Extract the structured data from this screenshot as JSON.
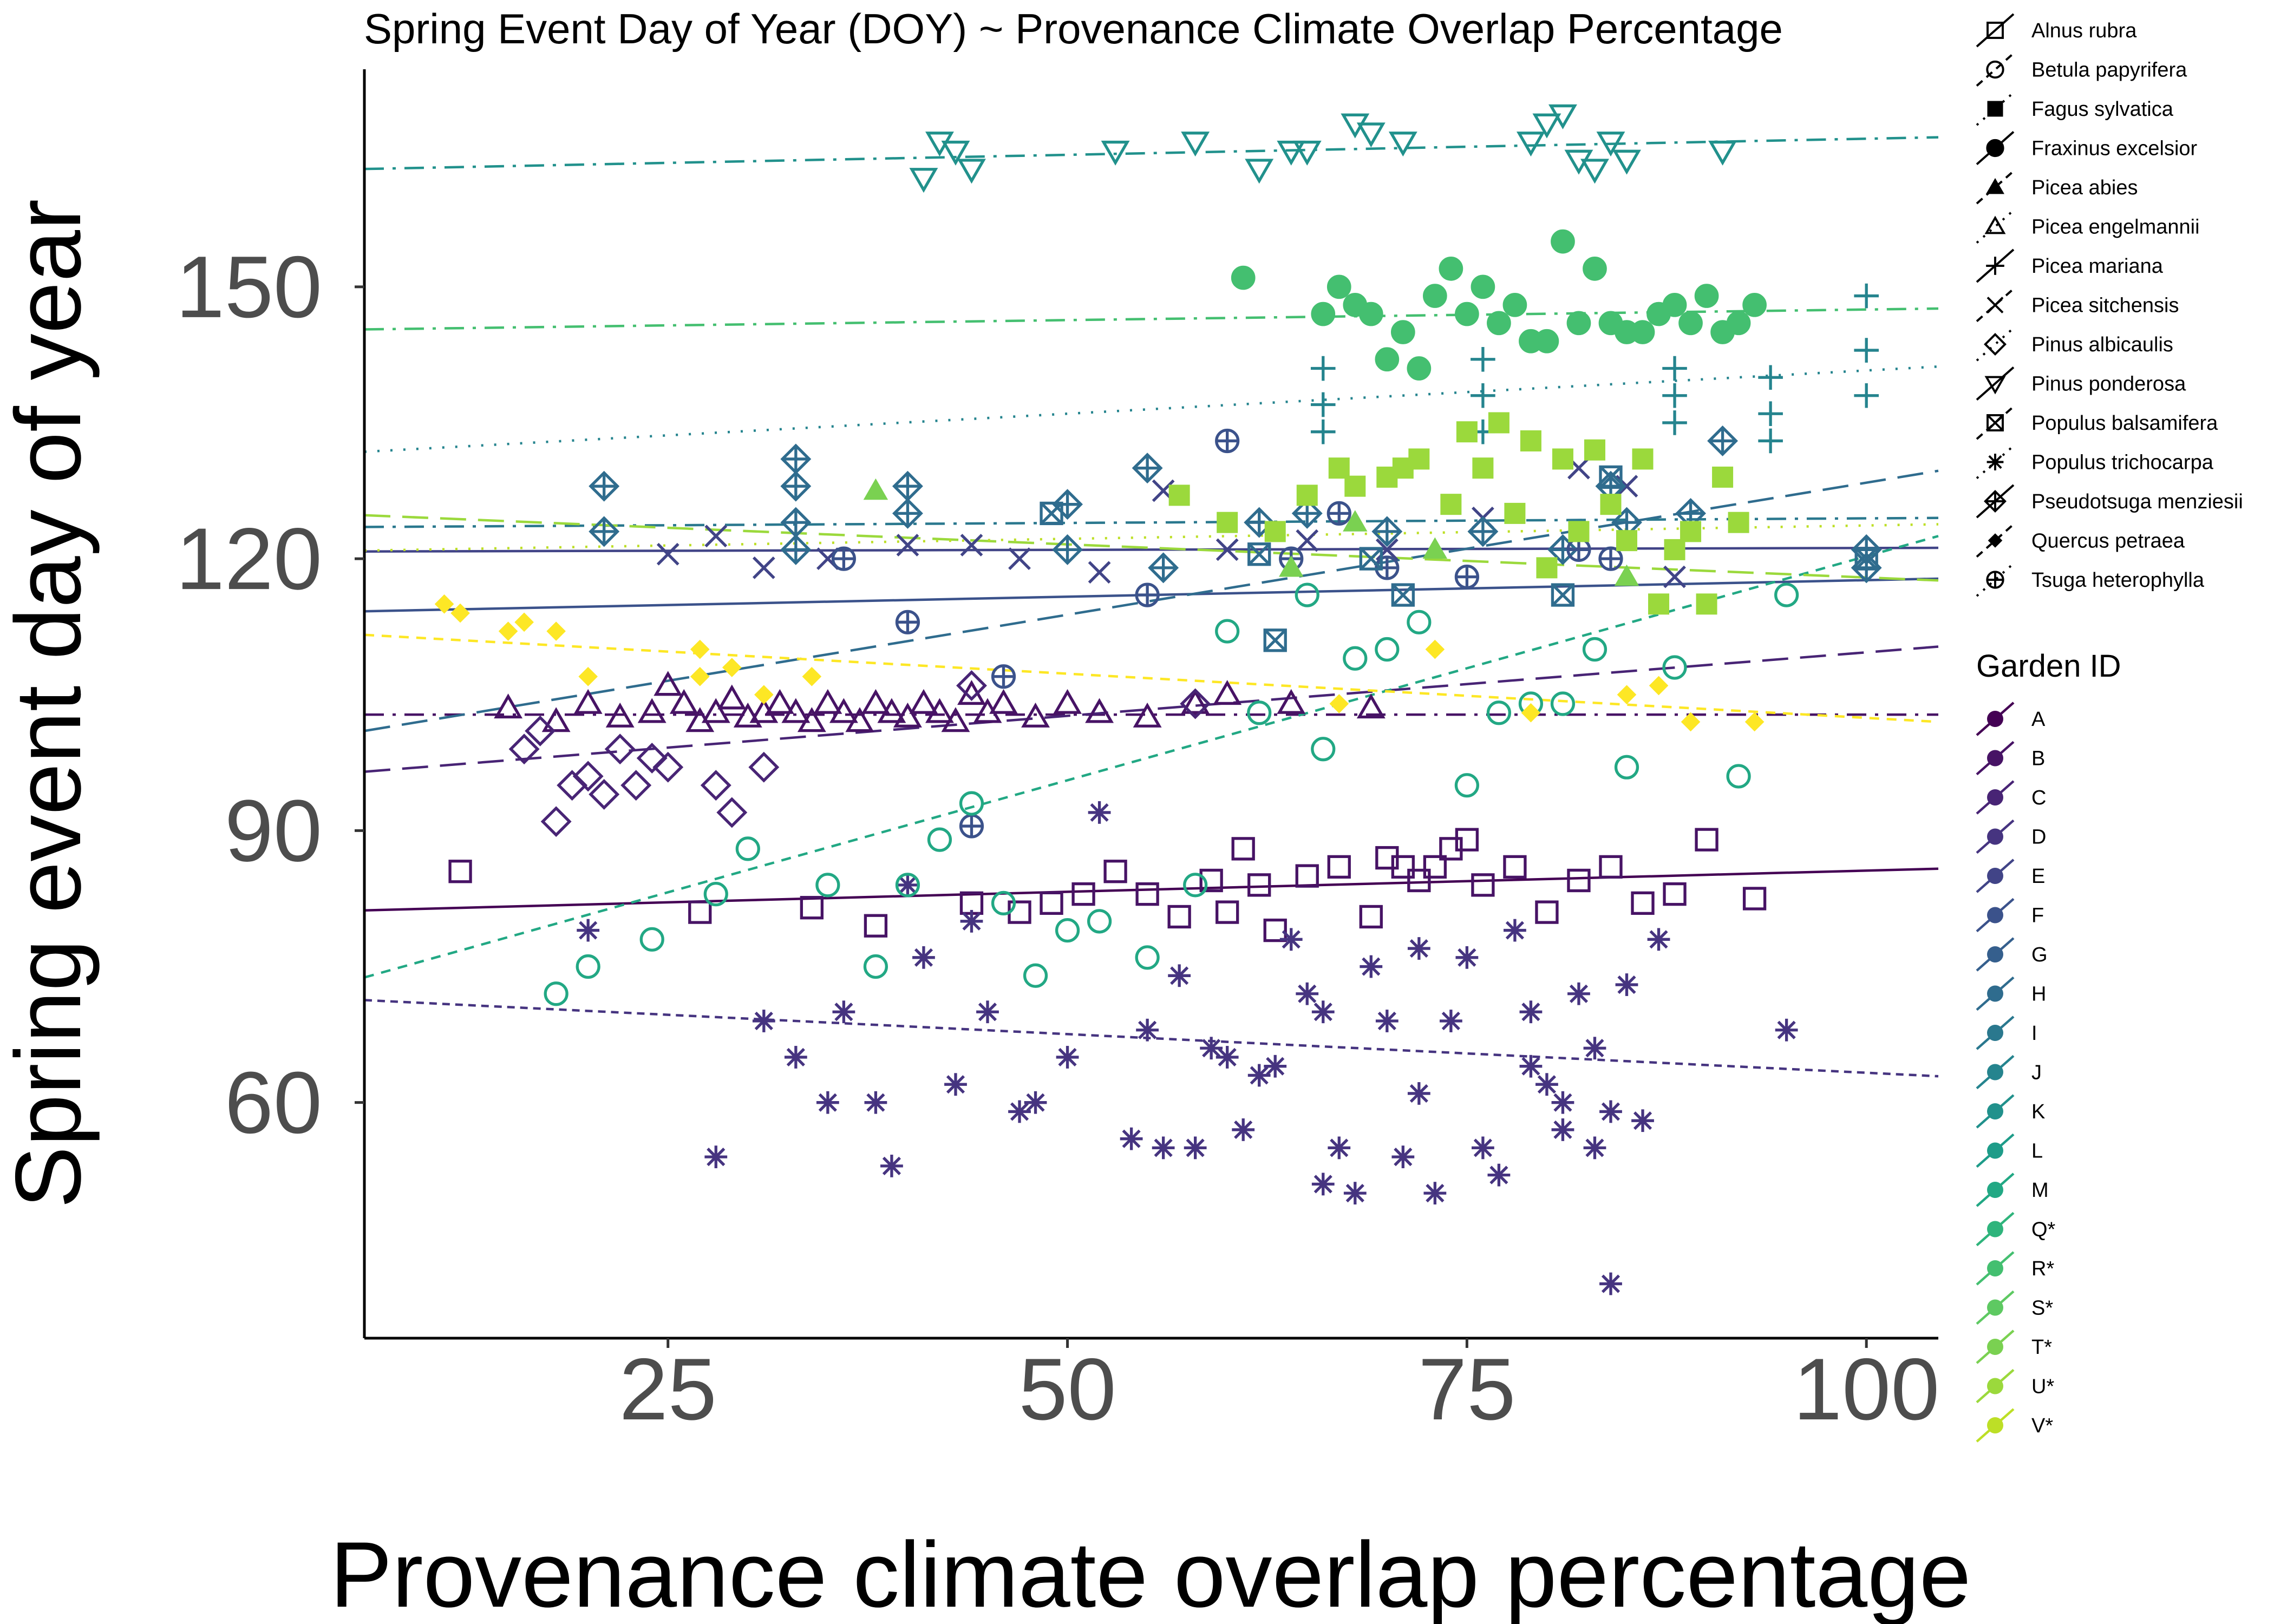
{
  "chart_data": {
    "type": "scatter",
    "title": "Spring Event Day of Year (DOY) ~ Provenance Climate Overlap Percentage",
    "xlabel": "Provenance climate overlap percentage",
    "ylabel": "Spring event day of year",
    "xlim": [
      6,
      104.5
    ],
    "ylim": [
      34,
      174
    ],
    "xticks": [
      25,
      50,
      75,
      100
    ],
    "yticks": [
      60,
      90,
      120,
      150
    ],
    "grid": false,
    "legend_position": "right",
    "species_legend": {
      "title": "",
      "entries": [
        {
          "label": "Alnus rubra",
          "shape": "square-open"
        },
        {
          "label": "Betula papyrifera",
          "shape": "circle-open"
        },
        {
          "label": "Fagus sylvatica",
          "shape": "square-filled"
        },
        {
          "label": "Fraxinus excelsior",
          "shape": "circle-filled"
        },
        {
          "label": "Picea abies",
          "shape": "triangle-filled"
        },
        {
          "label": "Picea engelmannii",
          "shape": "triangle-open"
        },
        {
          "label": "Picea mariana",
          "shape": "plus"
        },
        {
          "label": "Picea sitchensis",
          "shape": "cross"
        },
        {
          "label": "Pinus albicaulis",
          "shape": "diamond-open"
        },
        {
          "label": "Pinus ponderosa",
          "shape": "triangle-down-open"
        },
        {
          "label": "Populus balsamifera",
          "shape": "square-cross"
        },
        {
          "label": "Populus trichocarpa",
          "shape": "asterisk"
        },
        {
          "label": "Pseudotsuga menziesii",
          "shape": "diamond-plus"
        },
        {
          "label": "Quercus petraea",
          "shape": "diamond-filled"
        },
        {
          "label": "Tsuga heterophylla",
          "shape": "circle-plus"
        }
      ]
    },
    "garden_legend": {
      "title": "Garden ID",
      "entries": [
        {
          "label": "A",
          "color": "#440154"
        },
        {
          "label": "B",
          "color": "#471365"
        },
        {
          "label": "C",
          "color": "#482475"
        },
        {
          "label": "D",
          "color": "#463480"
        },
        {
          "label": "E",
          "color": "#414487"
        },
        {
          "label": "F",
          "color": "#3b528b"
        },
        {
          "label": "G",
          "color": "#355f8d"
        },
        {
          "label": "H",
          "color": "#2f6c8e"
        },
        {
          "label": "I",
          "color": "#2a788e"
        },
        {
          "label": "J",
          "color": "#25848e"
        },
        {
          "label": "K",
          "color": "#21918c"
        },
        {
          "label": "L",
          "color": "#1e9c89"
        },
        {
          "label": "M",
          "color": "#22a884"
        },
        {
          "label": "Q*",
          "color": "#2fb47c"
        },
        {
          "label": "R*",
          "color": "#44bf70"
        },
        {
          "label": "S*",
          "color": "#5ec962"
        },
        {
          "label": "T*",
          "color": "#7ad151"
        },
        {
          "label": "U*",
          "color": "#9bd93c"
        },
        {
          "label": "V*",
          "color": "#bddf26"
        }
      ]
    },
    "trend_lines": [
      {
        "garden": "A",
        "color": "#440154",
        "dash": "solid",
        "x": [
          6,
          104.5
        ],
        "y": [
          81.2,
          85.8
        ]
      },
      {
        "garden": "B",
        "color": "#471365",
        "dash": "dashdot",
        "x": [
          6,
          104.5
        ],
        "y": [
          102.8,
          102.8
        ]
      },
      {
        "garden": "C",
        "color": "#482475",
        "dash": "longdash",
        "x": [
          6,
          104.5
        ],
        "y": [
          96.5,
          110.3
        ]
      },
      {
        "garden": "D",
        "color": "#463480",
        "dash": "dotted-dash",
        "x": [
          6,
          104.5
        ],
        "y": [
          71.3,
          62.9
        ]
      },
      {
        "garden": "E",
        "color": "#414487",
        "dash": "solid",
        "x": [
          6,
          104.5
        ],
        "y": [
          120.8,
          121.2
        ]
      },
      {
        "garden": "F",
        "color": "#3b528b",
        "dash": "solid",
        "x": [
          6,
          104.5
        ],
        "y": [
          114.2,
          117.8
        ]
      },
      {
        "garden": "G",
        "color": "#2f6c8e",
        "dash": "longdash",
        "x": [
          6,
          104.5
        ],
        "y": [
          101.0,
          129.7
        ]
      },
      {
        "garden": "H",
        "color": "#2a788e",
        "dash": "dashdot",
        "x": [
          6,
          104.5
        ],
        "y": [
          123.5,
          124.5
        ]
      },
      {
        "garden": "I",
        "color": "#25848e",
        "dash": "dotted",
        "x": [
          6,
          104.5
        ],
        "y": [
          131.8,
          141.2
        ]
      },
      {
        "garden": "J",
        "color": "#21918c",
        "dash": "dashdot",
        "x": [
          6,
          104.5
        ],
        "y": [
          163.0,
          166.5
        ]
      },
      {
        "garden": "L",
        "color": "#22a884",
        "dash": "shortdash",
        "x": [
          6,
          104.5
        ],
        "y": [
          73.8,
          122.5
        ]
      },
      {
        "garden": "Q*",
        "color": "#44bf70",
        "dash": "dashdot",
        "x": [
          6,
          104.5
        ],
        "y": [
          145.3,
          147.6
        ]
      },
      {
        "garden": "T*",
        "color": "#9bd93c",
        "dash": "longdash",
        "x": [
          6,
          104.5
        ],
        "y": [
          124.8,
          117.6
        ]
      },
      {
        "garden": "U*",
        "color": "#bddf26",
        "dash": "dotted",
        "x": [
          6,
          104.5
        ],
        "y": [
          120.9,
          123.8
        ]
      },
      {
        "garden": "V*",
        "color": "#fde725",
        "dash": "shortdash",
        "x": [
          6,
          104.5
        ],
        "y": [
          111.6,
          102.0
        ]
      }
    ],
    "series": [
      {
        "species": "Alnus rubra",
        "garden": "B",
        "color": "#471365",
        "shape": "square-open",
        "x": [
          12,
          27,
          34,
          38,
          44,
          47,
          49,
          51,
          53,
          55,
          57,
          59,
          60,
          61,
          62,
          63,
          65,
          67,
          69,
          70,
          71,
          72,
          73,
          74,
          75,
          76,
          78,
          80,
          82,
          84,
          86,
          88,
          90,
          93
        ],
        "y": [
          85.5,
          81,
          81.5,
          79.5,
          82,
          81,
          82,
          83,
          85.5,
          83,
          80.5,
          84.5,
          81,
          88,
          84,
          79,
          85,
          86,
          80.5,
          87,
          86,
          84.5,
          86,
          88,
          89,
          84,
          86,
          81,
          84.5,
          86,
          82,
          83,
          89,
          82.5
        ]
      },
      {
        "species": "Populus trichocarpa",
        "garden": "D",
        "color": "#463480",
        "shape": "asterisk",
        "x": [
          20,
          28,
          31,
          33,
          35,
          36,
          38,
          39,
          41,
          43,
          45,
          47,
          48,
          50,
          52,
          54,
          55,
          57,
          58,
          59,
          61,
          62,
          63,
          64,
          65,
          66,
          67,
          68,
          69,
          70,
          71,
          72,
          73,
          74,
          75,
          76,
          77,
          78,
          79,
          80,
          81,
          82,
          83,
          84,
          85,
          86,
          87,
          95,
          84,
          83,
          81,
          79,
          72,
          66,
          60,
          56,
          44,
          40
        ],
        "y": [
          79,
          54,
          69,
          65,
          60,
          70,
          60,
          53,
          76,
          62,
          70,
          59,
          60,
          65,
          92,
          56,
          68,
          74,
          55,
          66,
          57,
          63,
          64,
          78,
          72,
          51,
          55,
          50,
          75,
          69,
          54,
          61,
          50,
          69,
          76,
          55,
          52,
          79,
          64,
          62,
          60,
          72,
          55,
          59,
          73,
          58,
          78,
          68,
          40,
          66,
          57,
          70,
          77,
          70,
          65,
          55,
          80,
          84
        ]
      },
      {
        "species": "Picea engelmannii",
        "garden": "B",
        "color": "#471365",
        "shape": "triangle-open",
        "x": [
          15,
          18,
          20,
          22,
          24,
          25,
          26,
          27,
          28,
          29,
          30,
          31,
          32,
          33,
          34,
          35,
          36,
          37,
          38,
          39,
          40,
          41,
          42,
          43,
          44,
          45,
          46,
          48,
          50,
          52,
          55,
          58,
          60,
          64,
          69
        ],
        "y": [
          103.5,
          102,
          104,
          102.5,
          103,
          106,
          104,
          102,
          103,
          104.5,
          102.5,
          103,
          104,
          103,
          102,
          104,
          103,
          102,
          104,
          103,
          102.5,
          104,
          103,
          102,
          105,
          103,
          104,
          102.5,
          104,
          103,
          102.5,
          104,
          105,
          104,
          103.5
        ]
      },
      {
        "species": "Pinus albicaulis",
        "garden": "C",
        "color": "#482475",
        "shape": "diamond-open",
        "x": [
          16,
          17,
          18,
          19,
          20,
          21,
          22,
          23,
          24,
          25,
          28,
          29,
          31,
          44,
          58
        ],
        "y": [
          99,
          101,
          91,
          95,
          96,
          94,
          99,
          95,
          98,
          97,
          95,
          92,
          97,
          106,
          104
        ]
      },
      {
        "species": "Picea sitchensis",
        "garden": "E",
        "color": "#414487",
        "shape": "cross",
        "x": [
          25,
          28,
          31,
          35,
          40,
          44,
          47,
          52,
          56,
          60,
          65,
          70,
          76,
          82,
          85,
          88
        ],
        "y": [
          120.5,
          122.5,
          119,
          120,
          121.5,
          121.5,
          120,
          118.5,
          127.5,
          121,
          122,
          121,
          124.5,
          130,
          128,
          118
        ]
      },
      {
        "species": "Pseudotsuga menziesii",
        "garden": "G",
        "color": "#2f6c8e",
        "shape": "diamond-plus",
        "x": [
          21,
          21,
          33,
          33,
          33,
          33,
          40,
          40,
          50,
          50,
          55,
          56,
          62,
          65,
          70,
          76,
          81,
          84,
          85,
          89,
          91,
          100,
          100
        ],
        "y": [
          128,
          123,
          131,
          128,
          124,
          121,
          128,
          125,
          126,
          121,
          130,
          119,
          124,
          125,
          123,
          123,
          121,
          128,
          124,
          125,
          133,
          121,
          119
        ]
      },
      {
        "species": "Tsuga heterophylla",
        "garden": "F",
        "color": "#3b528b",
        "shape": "circle-plus",
        "x": [
          36,
          40,
          44,
          46,
          55,
          60,
          64,
          67,
          70,
          75,
          82,
          84
        ],
        "y": [
          120,
          113,
          90.5,
          107,
          116,
          133,
          120,
          125,
          119,
          118,
          121,
          120
        ]
      },
      {
        "species": "Populus balsamifera",
        "garden": "G",
        "color": "#2f6c8e",
        "shape": "square-cross",
        "x": [
          49,
          62,
          63,
          69,
          71,
          81,
          84,
          100
        ],
        "y": [
          125,
          120.5,
          111,
          120,
          116,
          116,
          129,
          120
        ]
      },
      {
        "species": "Pinus ponderosa",
        "garden": "J",
        "color": "#21918c",
        "shape": "triangle-down-open",
        "x": [
          41,
          42,
          43,
          44,
          53,
          58,
          62,
          64,
          65,
          68,
          69,
          71,
          79,
          80,
          81,
          82,
          83,
          84,
          85,
          91
        ],
        "y": [
          162,
          166,
          165,
          163,
          165,
          166,
          163,
          165,
          165,
          168,
          167,
          166,
          166,
          168,
          169,
          164,
          163,
          166,
          164,
          165
        ]
      },
      {
        "species": "Picea mariana",
        "garden": "I",
        "color": "#25848e",
        "shape": "plus",
        "x": [
          66,
          66,
          66,
          76,
          76,
          76,
          88,
          88,
          88,
          94,
          94,
          94,
          100,
          100,
          100
        ],
        "y": [
          141,
          137,
          134,
          142,
          138,
          134,
          141,
          138,
          135,
          140,
          136,
          133,
          149,
          143,
          138
        ]
      },
      {
        "species": "Betula papyrifera",
        "garden": "L",
        "color": "#22a884",
        "shape": "circle-open",
        "x": [
          18,
          20,
          24,
          28,
          30,
          35,
          38,
          40,
          42,
          44,
          46,
          48,
          50,
          52,
          55,
          58,
          60,
          62,
          65,
          66,
          68,
          70,
          72,
          75,
          77,
          79,
          81,
          83,
          85,
          88,
          92,
          95
        ],
        "y": [
          72,
          75,
          78,
          83,
          88,
          84,
          75,
          84,
          89,
          93,
          82,
          74,
          79,
          80,
          76,
          84,
          112,
          103,
          116,
          99,
          109,
          110,
          113,
          95,
          103,
          104,
          104,
          110,
          97,
          108,
          96,
          116
        ]
      },
      {
        "species": "Fraxinus excelsior",
        "garden": "Q*",
        "color": "#44bf70",
        "shape": "circle-filled",
        "x": [
          61,
          66,
          67,
          68,
          69,
          70,
          71,
          72,
          73,
          74,
          75,
          76,
          77,
          78,
          79,
          80,
          81,
          82,
          83,
          84,
          85,
          86,
          87,
          88,
          89,
          90,
          91,
          92,
          93
        ],
        "y": [
          151,
          147,
          150,
          148,
          147,
          142,
          145,
          141,
          149,
          152,
          147,
          150,
          146,
          148,
          144,
          144,
          155,
          146,
          152,
          146,
          145,
          145,
          147,
          148,
          146,
          149,
          145,
          146,
          148
        ]
      },
      {
        "species": "Fagus sylvatica",
        "garden": "T*",
        "color": "#9bd93c",
        "shape": "square-filled",
        "x": [
          57,
          60,
          63,
          65,
          67,
          68,
          70,
          71,
          72,
          74,
          75,
          76,
          77,
          78,
          79,
          80,
          81,
          82,
          83,
          84,
          85,
          86,
          87,
          88,
          89,
          90,
          91,
          92
        ],
        "y": [
          127,
          124,
          123,
          127,
          130,
          128,
          129,
          130,
          131,
          126,
          134,
          130,
          135,
          125,
          133,
          119,
          131,
          123,
          132,
          126,
          122,
          131,
          115,
          121,
          123,
          115,
          129,
          124
        ]
      },
      {
        "species": "Picea abies",
        "garden": "S*",
        "color": "#7ad151",
        "shape": "triangle-filled",
        "x": [
          38,
          64,
          68,
          73,
          85
        ],
        "y": [
          127.5,
          119,
          124,
          121,
          118
        ]
      },
      {
        "species": "Quercus petraea",
        "garden": "V*",
        "color": "#fde725",
        "shape": "diamond-filled",
        "x": [
          11,
          12,
          15,
          16,
          18,
          20,
          27,
          27,
          29,
          31,
          34,
          67,
          73,
          79,
          85,
          87,
          89,
          93
        ],
        "y": [
          115,
          114,
          112,
          113,
          112,
          107,
          110,
          107,
          108,
          105,
          107,
          104,
          110,
          103,
          105,
          106,
          102,
          102
        ]
      }
    ]
  }
}
